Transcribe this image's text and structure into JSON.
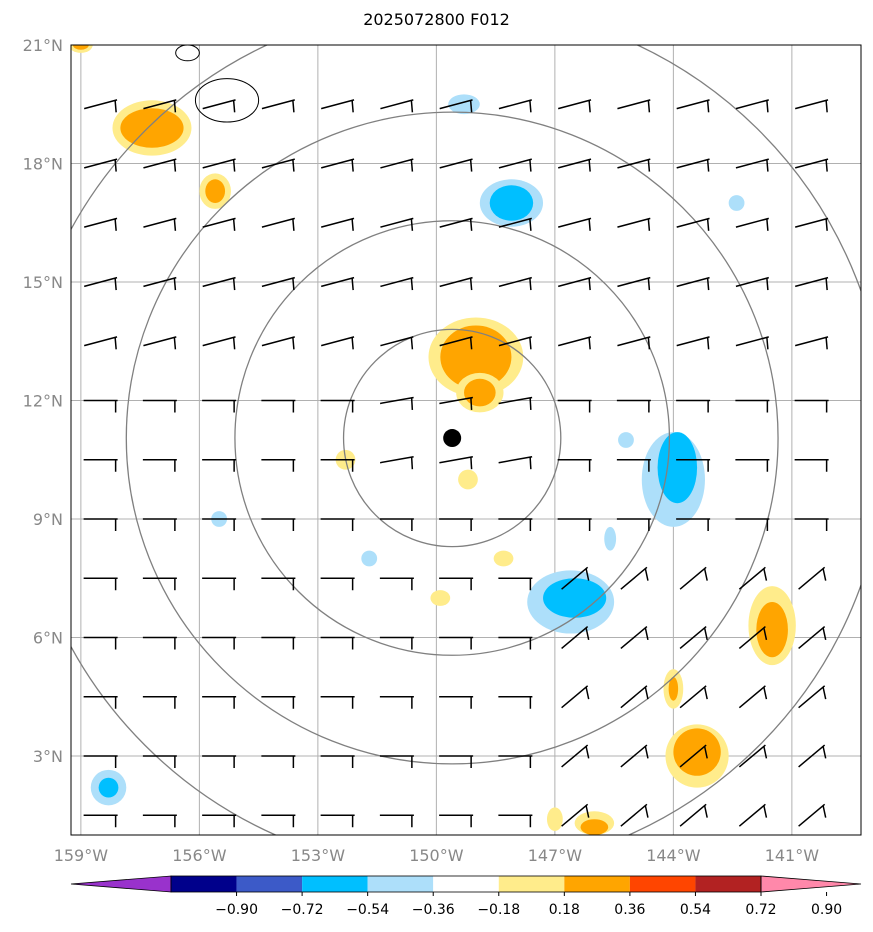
{
  "title": "2025072800 F012",
  "lat_axis": {
    "ticks": [
      {
        "value": 21,
        "label": "21°N"
      },
      {
        "value": 18,
        "label": "18°N"
      },
      {
        "value": 15,
        "label": "15°N"
      },
      {
        "value": 12,
        "label": "12°N"
      },
      {
        "value": 9,
        "label": "9°N"
      },
      {
        "value": 6,
        "label": "6°N"
      },
      {
        "value": 3,
        "label": "3°N"
      }
    ],
    "range": [
      1,
      21
    ]
  },
  "lon_axis": {
    "ticks": [
      {
        "value": -159,
        "label": "159°W"
      },
      {
        "value": -156,
        "label": "156°W"
      },
      {
        "value": -153,
        "label": "153°W"
      },
      {
        "value": -150,
        "label": "150°W"
      },
      {
        "value": -147,
        "label": "147°W"
      },
      {
        "value": -144,
        "label": "144°W"
      },
      {
        "value": -141,
        "label": "141°W"
      }
    ],
    "range": [
      -159.25,
      -139.25
    ]
  },
  "center": {
    "lon": -149.6,
    "lat": 11.05
  },
  "range_rings_deg": [
    2.75,
    5.5,
    8.25,
    11.0
  ],
  "colorbar": {
    "colors": [
      "#9932CC",
      "#00008B",
      "#3C5AC8",
      "#00BFFF",
      "#ADDFFA",
      "#FFFFFF",
      "#FFEC8B",
      "#FFA500",
      "#FF4500",
      "#B22222",
      "#FF88AA"
    ],
    "labels": [
      "−0.90",
      "−0.72",
      "−0.54",
      "−0.36",
      "−0.18",
      "0.18",
      "0.36",
      "0.54",
      "0.72",
      "0.90"
    ]
  },
  "colors": {
    "grid": "#b0b0b0",
    "rings": "#808080",
    "coast": "#000000",
    "barb": "#000000"
  }
}
